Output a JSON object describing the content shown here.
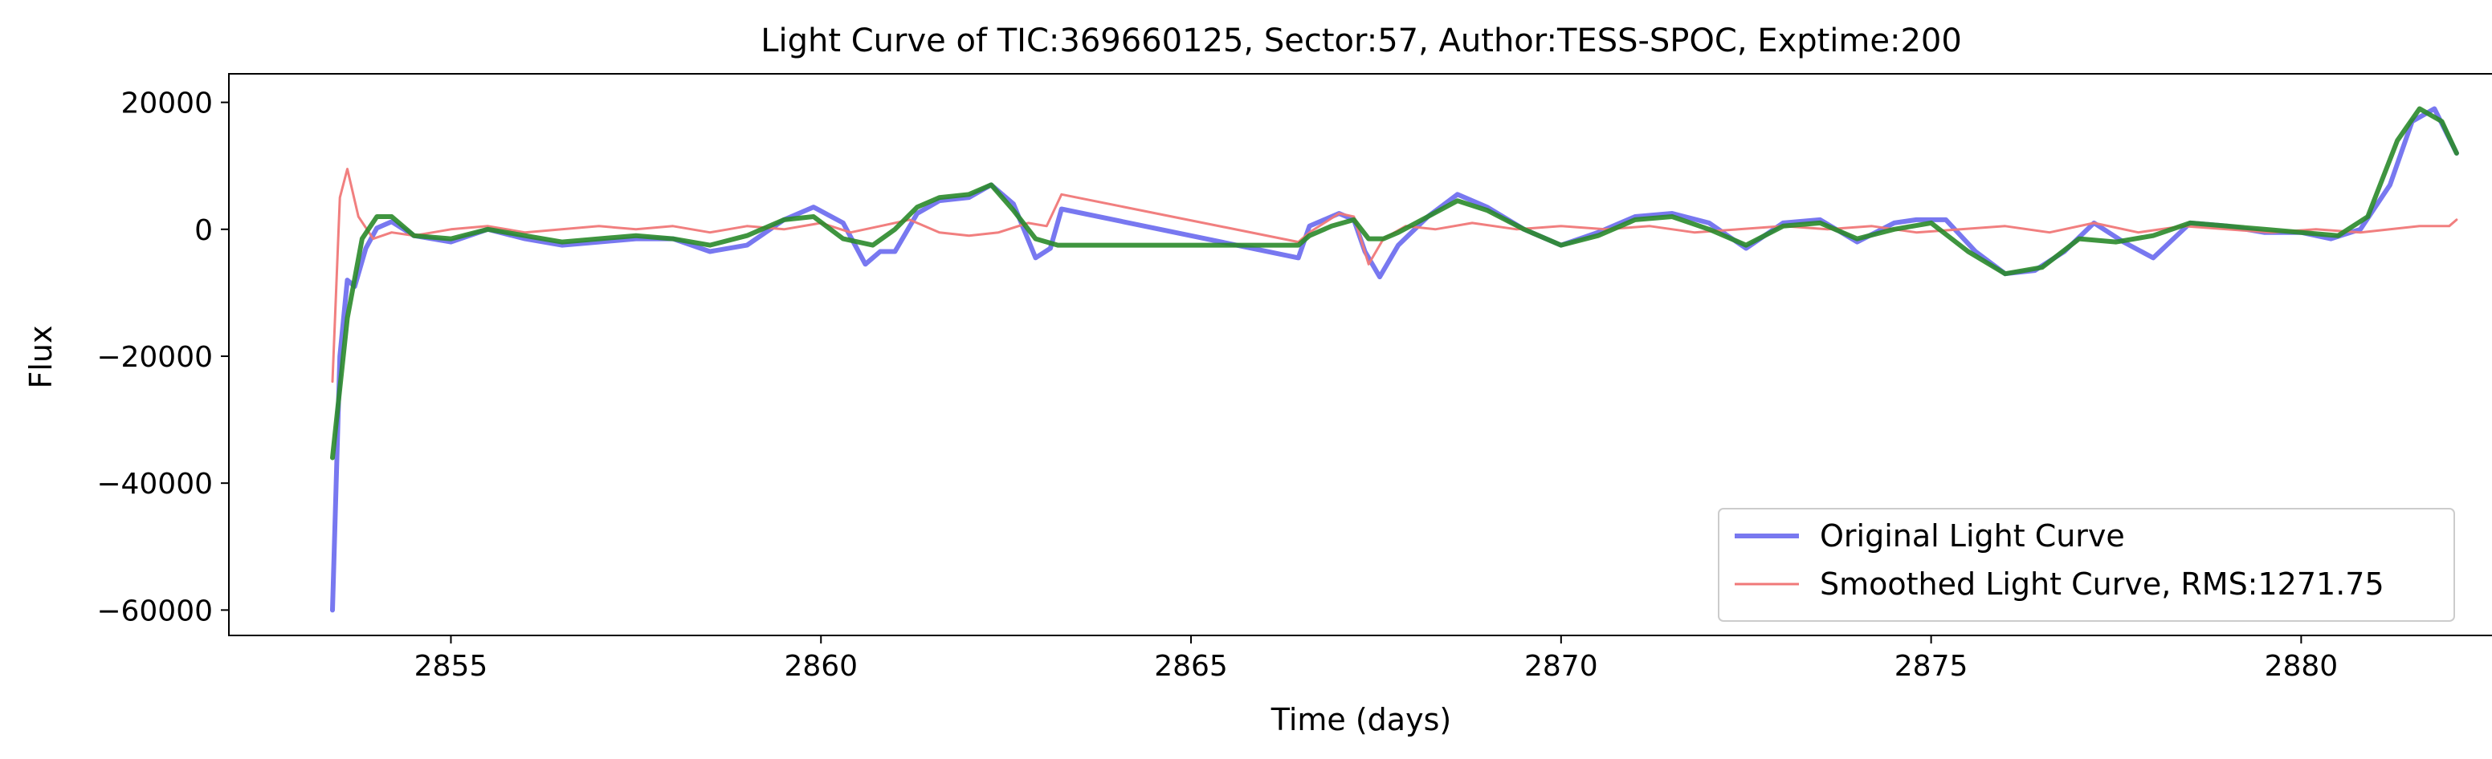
{
  "chart_data": {
    "type": "line",
    "title": "Light Curve of TIC:369660125, Sector:57, Author:TESS-SPOC, Exptime:200",
    "xlabel": "Time (days)",
    "ylabel": "Flux",
    "xlim": [
      2852.0,
      2882.6
    ],
    "ylim": [
      -64000,
      24500
    ],
    "xticks": [
      2855,
      2860,
      2865,
      2870,
      2875,
      2880
    ],
    "xtick_labels": [
      "2855",
      "2860",
      "2865",
      "2870",
      "2875",
      "2880"
    ],
    "yticks": [
      20000,
      0,
      -20000,
      -40000,
      -60000
    ],
    "ytick_labels": [
      "20000",
      "0",
      "−20000",
      "−40000",
      "−60000"
    ],
    "grid": false,
    "legend_position": "lower-right",
    "series": [
      {
        "name": "Original Light Curve",
        "color": "#7878f0",
        "x": [
          2853.4,
          2853.5,
          2853.6,
          2853.7,
          2853.85,
          2854.0,
          2854.2,
          2854.5,
          2855.0,
          2855.5,
          2856.0,
          2856.5,
          2857.0,
          2857.5,
          2858.0,
          2858.5,
          2859.0,
          2859.5,
          2859.9,
          2860.3,
          2860.6,
          2860.8,
          2861.0,
          2861.3,
          2861.6,
          2862.0,
          2862.3,
          2862.6,
          2862.9,
          2863.1,
          2863.25,
          2866.45,
          2866.6,
          2866.8,
          2867.0,
          2867.2,
          2867.35,
          2867.55,
          2867.8,
          2868.2,
          2868.6,
          2869.0,
          2869.5,
          2870.0,
          2870.5,
          2871.0,
          2871.5,
          2872.0,
          2872.5,
          2873.0,
          2873.5,
          2874.0,
          2874.5,
          2874.8,
          2875.2,
          2875.6,
          2876.0,
          2876.4,
          2876.8,
          2877.2,
          2877.6,
          2878.0,
          2878.5,
          2879.0,
          2879.5,
          2880.0,
          2880.4,
          2880.8,
          2881.2,
          2881.5,
          2881.8,
          2882.1
        ],
        "y": [
          -60000,
          -20000,
          -8000,
          -9000,
          -3000,
          200,
          1200,
          -1000,
          -2000,
          0,
          -1500,
          -2500,
          -2000,
          -1500,
          -1500,
          -3500,
          -2500,
          1500,
          3500,
          1000,
          -5500,
          -3500,
          -3500,
          2500,
          4500,
          5000,
          7000,
          4000,
          -4500,
          -3000,
          3200,
          -4500,
          500,
          1500,
          2500,
          1500,
          -3500,
          -7500,
          -2500,
          2000,
          5500,
          3500,
          0,
          -2500,
          -500,
          2000,
          2500,
          1000,
          -3000,
          1000,
          1500,
          -2000,
          1000,
          1500,
          1500,
          -3500,
          -7000,
          -6500,
          -3500,
          1000,
          -2000,
          -4500,
          1000,
          500,
          -500,
          -500,
          -1500,
          0,
          7000,
          17000,
          19000,
          12000
        ]
      },
      {
        "name": "Smoothed Light Curve, RMS:1271.75",
        "color": "#f07878",
        "x": [
          2853.4,
          2853.5,
          2853.6,
          2853.75,
          2853.95,
          2854.2,
          2854.5,
          2855.0,
          2855.5,
          2856.0,
          2856.5,
          2857.0,
          2857.5,
          2858.0,
          2858.5,
          2859.0,
          2859.5,
          2860.0,
          2860.4,
          2860.8,
          2861.2,
          2861.6,
          2862.0,
          2862.4,
          2862.8,
          2863.05,
          2863.25,
          2866.45,
          2866.6,
          2866.8,
          2867.0,
          2867.2,
          2867.4,
          2867.6,
          2867.9,
          2868.3,
          2868.8,
          2869.4,
          2870.0,
          2870.6,
          2871.2,
          2871.8,
          2872.4,
          2873.0,
          2873.6,
          2874.2,
          2874.8,
          2875.4,
          2876.0,
          2876.6,
          2877.2,
          2877.8,
          2878.4,
          2879.0,
          2879.6,
          2880.2,
          2880.8,
          2881.2,
          2881.6,
          2882.0,
          2882.1
        ],
        "y": [
          -24000,
          5000,
          9500,
          2000,
          -1500,
          -500,
          -1000,
          0,
          500,
          -500,
          0,
          500,
          0,
          500,
          -500,
          500,
          0,
          1000,
          -500,
          500,
          1500,
          -500,
          -1000,
          -500,
          1000,
          500,
          5500,
          -2000,
          -500,
          1000,
          2500,
          2000,
          -5500,
          -1500,
          500,
          0,
          1000,
          0,
          500,
          0,
          500,
          -500,
          0,
          500,
          0,
          500,
          -500,
          0,
          500,
          -500,
          1000,
          -500,
          500,
          0,
          -500,
          0,
          -500,
          0,
          500,
          500,
          1500
        ]
      },
      {
        "name": "",
        "color": "#2a8a2a",
        "x": [
          2853.4,
          2853.6,
          2853.8,
          2854.0,
          2854.2,
          2854.5,
          2855.0,
          2855.5,
          2856.0,
          2856.5,
          2857.0,
          2857.5,
          2858.0,
          2858.5,
          2859.0,
          2859.5,
          2859.9,
          2860.3,
          2860.7,
          2861.0,
          2861.3,
          2861.6,
          2862.0,
          2862.3,
          2862.6,
          2862.9,
          2863.2,
          2866.45,
          2866.6,
          2866.9,
          2867.2,
          2867.4,
          2867.6,
          2867.8,
          2868.2,
          2868.6,
          2869.0,
          2869.5,
          2870.0,
          2870.5,
          2871.0,
          2871.5,
          2872.0,
          2872.5,
          2873.0,
          2873.5,
          2874.0,
          2874.5,
          2875.0,
          2875.5,
          2876.0,
          2876.5,
          2877.0,
          2877.5,
          2878.0,
          2878.5,
          2879.0,
          2879.5,
          2880.0,
          2880.5,
          2880.9,
          2881.3,
          2881.6,
          2881.9,
          2882.1
        ],
        "y": [
          -36000,
          -14000,
          -1500,
          2000,
          2000,
          -1000,
          -1500,
          0,
          -1000,
          -2000,
          -1500,
          -1000,
          -1500,
          -2500,
          -1000,
          1500,
          2000,
          -1500,
          -2500,
          0,
          3500,
          5000,
          5500,
          7000,
          3000,
          -1500,
          -2500,
          -2500,
          -1000,
          500,
          1500,
          -1500,
          -1500,
          -500,
          2000,
          4500,
          3000,
          0,
          -2500,
          -1000,
          1500,
          2000,
          0,
          -2500,
          500,
          1000,
          -1500,
          0,
          1000,
          -3500,
          -7000,
          -6000,
          -1500,
          -2000,
          -1000,
          1000,
          500,
          0,
          -500,
          -1000,
          2000,
          14000,
          19000,
          17000,
          12000
        ]
      }
    ]
  }
}
